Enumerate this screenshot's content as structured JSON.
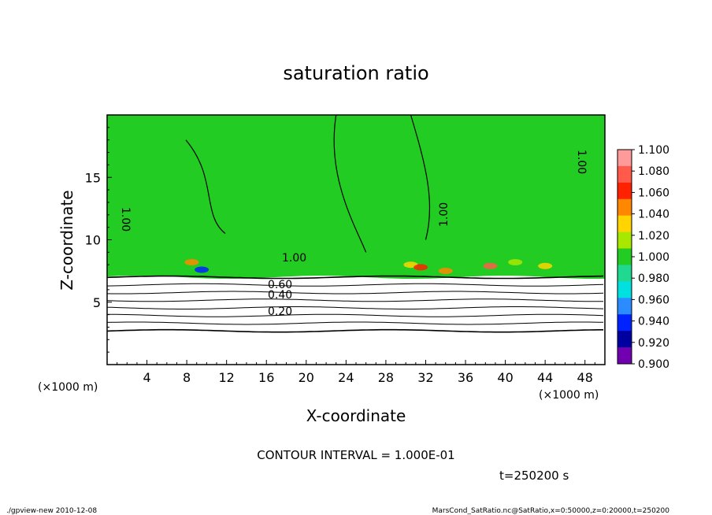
{
  "chart_data": {
    "type": "heatmap",
    "title": "saturation ratio",
    "xlabel": "X-coordinate",
    "ylabel": "Z-coordinate",
    "x_unit": "(×1000 m)",
    "y_unit": "(×1000 m)",
    "xlim": [
      0,
      50
    ],
    "ylim": [
      0,
      20
    ],
    "x_ticks": [
      "4",
      "8",
      "12",
      "16",
      "20",
      "24",
      "28",
      "32",
      "36",
      "40",
      "44",
      "48"
    ],
    "y_ticks": [
      "5",
      "10",
      "15"
    ],
    "colorbar": {
      "labels": [
        "1.100",
        "1.080",
        "1.060",
        "1.040",
        "1.020",
        "1.000",
        "0.980",
        "0.960",
        "0.940",
        "0.920",
        "0.900"
      ],
      "colors": [
        "#ff9a9a",
        "#ff5a4a",
        "#ff2200",
        "#ff8800",
        "#ffd400",
        "#a8e800",
        "#22cc22",
        "#20d890",
        "#00e0e0",
        "#2a8cff",
        "#0022ff",
        "#0000a0",
        "#7000b0"
      ]
    },
    "field": {
      "fill_color": "#22cc22",
      "fill_z_bottom": 7.0,
      "fill_z_top": 20
    },
    "contour_levels": [
      0.2,
      0.3,
      0.4,
      0.5,
      0.6,
      0.7,
      0.8,
      0.9
    ],
    "contour_label_texts": [
      "1.00",
      "0.60",
      "0.40",
      "0.20"
    ],
    "contour_interval_text": "CONTOUR INTERVAL = 1.000E-01",
    "time_text": "t=250200 s"
  },
  "footer": {
    "left": "./gpview-new 2010-12-08",
    "right": "MarsCond_SatRatio.nc@SatRatio,x=0:50000,z=0:20000,t=250200"
  }
}
